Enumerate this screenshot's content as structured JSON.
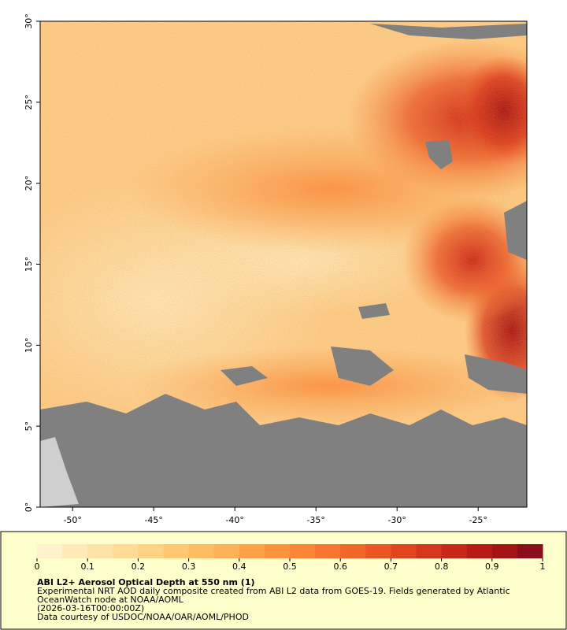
{
  "map": {
    "xlim": [
      -52,
      -22
    ],
    "ylim": [
      0,
      30
    ],
    "xticks": [
      {
        "value": -50,
        "label": "-50°"
      },
      {
        "value": -45,
        "label": "-45°"
      },
      {
        "value": -40,
        "label": "-40°"
      },
      {
        "value": -35,
        "label": "-35°"
      },
      {
        "value": -30,
        "label": "-30°"
      },
      {
        "value": -25,
        "label": "-25°"
      }
    ],
    "yticks": [
      {
        "value": 0,
        "label": "0°"
      },
      {
        "value": 5,
        "label": "5°"
      },
      {
        "value": 10,
        "label": "10°"
      },
      {
        "value": 15,
        "label": "15°"
      },
      {
        "value": 20,
        "label": "20°"
      },
      {
        "value": 25,
        "label": "25°"
      },
      {
        "value": 30,
        "label": "30°"
      }
    ]
  },
  "colorbar": {
    "lim": [
      0,
      1
    ],
    "ticks": [
      0,
      0.1,
      0.2,
      0.3,
      0.4,
      0.5,
      0.6,
      0.7,
      0.8,
      0.9,
      1
    ],
    "colors": [
      "#fff2cc",
      "#ffeab8",
      "#ffe3a6",
      "#ffdb94",
      "#fed383",
      "#fec872",
      "#febc63",
      "#fdb055",
      "#fda249",
      "#fc943f",
      "#fb8536",
      "#f8752f",
      "#f26529",
      "#ea5524",
      "#e1451f",
      "#d6361b",
      "#c92818",
      "#b81b16",
      "#a41315",
      "#8b0d1b"
    ]
  },
  "caption": {
    "title": "ABI L2+ Aerosol Optical Depth at 550 nm (1)",
    "lines": [
      "Experimental NRT AOD daily composite created from ABI L2 data from GOES-19. Fields generated by Atlantic",
      "OceanWatch node at NOAA/AOML",
      "(2026-03-16T00:00:00Z)",
      "Data courtesy of USDOC/NOAA/OAR/AOML/PHOD"
    ]
  }
}
